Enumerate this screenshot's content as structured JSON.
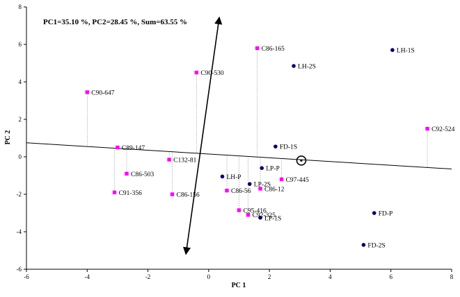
{
  "chart_data": {
    "type": "scatter",
    "annotation": "PC1=35.10 %, PC2=28.45 %, Sum=63.55 %",
    "xlabel": "PC 1",
    "ylabel": "PC 2",
    "xlim": [
      -6,
      8
    ],
    "ylim": [
      -6,
      8
    ],
    "xticks": [
      -6,
      -4,
      -2,
      0,
      2,
      4,
      6,
      8
    ],
    "yticks": [
      -6,
      -4,
      -2,
      0,
      2,
      4,
      6,
      8
    ],
    "grid": false,
    "series": [
      {
        "marker": "square",
        "color": "#ff00ff",
        "points": [
          {
            "label": "C86-165",
            "x": 1.6,
            "y": 5.8
          },
          {
            "label": "C90-530",
            "x": -0.4,
            "y": 4.5
          },
          {
            "label": "C90-647",
            "x": -4.0,
            "y": 3.45
          },
          {
            "label": "C92-524",
            "x": 7.2,
            "y": 1.5
          },
          {
            "label": "C89-147",
            "x": -3.0,
            "y": 0.5
          },
          {
            "label": "C132-81",
            "x": -1.3,
            "y": -0.15
          },
          {
            "label": "C86-503",
            "x": -2.7,
            "y": -0.9
          },
          {
            "label": "C91-356",
            "x": -3.1,
            "y": -1.9
          },
          {
            "label": "C86-156",
            "x": -1.2,
            "y": -2.0
          },
          {
            "label": "C97-445",
            "x": 2.4,
            "y": -1.2
          },
          {
            "label": "C86-12",
            "x": 1.7,
            "y": -1.7
          },
          {
            "label": "C86-56",
            "x": 0.6,
            "y": -1.8
          },
          {
            "label": "C95-416",
            "x": 1.0,
            "y": -2.85
          },
          {
            "label": "C92-325",
            "x": 1.3,
            "y": -3.1
          }
        ]
      },
      {
        "marker": "circle",
        "color": "#000066",
        "points": [
          {
            "label": "LH-1S",
            "x": 6.05,
            "y": 5.7
          },
          {
            "label": "LH-2S",
            "x": 2.8,
            "y": 4.85
          },
          {
            "label": "FD-1S",
            "x": 2.2,
            "y": 0.55
          },
          {
            "label": "LP-P",
            "x": 1.75,
            "y": -0.6
          },
          {
            "label": "LH-P",
            "x": 0.45,
            "y": -1.05
          },
          {
            "label": "LP-2S",
            "x": 1.35,
            "y": -1.45
          },
          {
            "label": "FD-P",
            "x": 5.45,
            "y": -3.0
          },
          {
            "label": "LP-1S",
            "x": 1.7,
            "y": -3.25
          },
          {
            "label": "FD-2S",
            "x": 5.1,
            "y": -4.7
          }
        ]
      }
    ],
    "fitted_line": {
      "from": [
        -6,
        0.75
      ],
      "to": [
        8,
        -0.65
      ]
    },
    "orthogonal_arrow": {
      "from": [
        -0.75,
        -5.2
      ],
      "to": [
        0.35,
        7.45
      ]
    },
    "marked_point": {
      "x": 3.05,
      "y": -0.2
    }
  }
}
